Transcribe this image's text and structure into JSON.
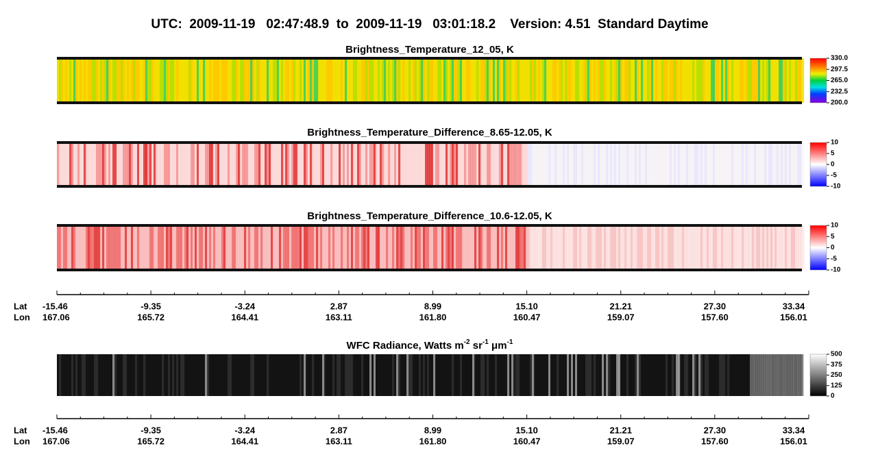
{
  "title": "UTC:  2009-11-19   02:47:48.9  to  2009-11-19   03:01:18.2    Version: 4.51  Standard Daytime",
  "panels": [
    {
      "title": "Brightness_Temperature_12_05, K",
      "colorbar": [
        "330.0",
        "297.5",
        "265.0",
        "232.5",
        "200.0"
      ]
    },
    {
      "title": "Brightness_Temperature_Difference_8.65-12.05, K",
      "colorbar": [
        "10",
        "5",
        "0",
        "-5",
        "-10"
      ]
    },
    {
      "title": "Brightness_Temperature_Difference_10.6-12.05, K",
      "colorbar": [
        "10",
        "5",
        "0",
        "-5",
        "-10"
      ]
    },
    {
      "title_parts": [
        "WFC Radiance, Watts m",
        "-2",
        " sr",
        "-1",
        " μm",
        "-1"
      ],
      "colorbar": [
        "500",
        "375",
        "250",
        "125",
        "0"
      ]
    }
  ],
  "axes": [
    {
      "lat_label": "Lat",
      "lon_label": "Lon",
      "lat": [
        "-15.46",
        "-9.35",
        "-3.24",
        "2.87",
        "8.99",
        "15.10",
        "21.21",
        "27.30",
        "33.34"
      ],
      "lon": [
        "167.06",
        "165.72",
        "164.41",
        "163.11",
        "161.80",
        "160.47",
        "159.07",
        "157.60",
        "156.01"
      ]
    },
    {
      "lat_label": "Lat",
      "lon_label": "Lon",
      "lat": [
        "-15.46",
        "-9.35",
        "-3.24",
        "2.87",
        "8.99",
        "15.10",
        "21.21",
        "27.30",
        "33.34"
      ],
      "lon": [
        "167.06",
        "165.72",
        "164.41",
        "163.11",
        "161.80",
        "160.47",
        "159.07",
        "157.60",
        "156.01"
      ]
    }
  ]
}
